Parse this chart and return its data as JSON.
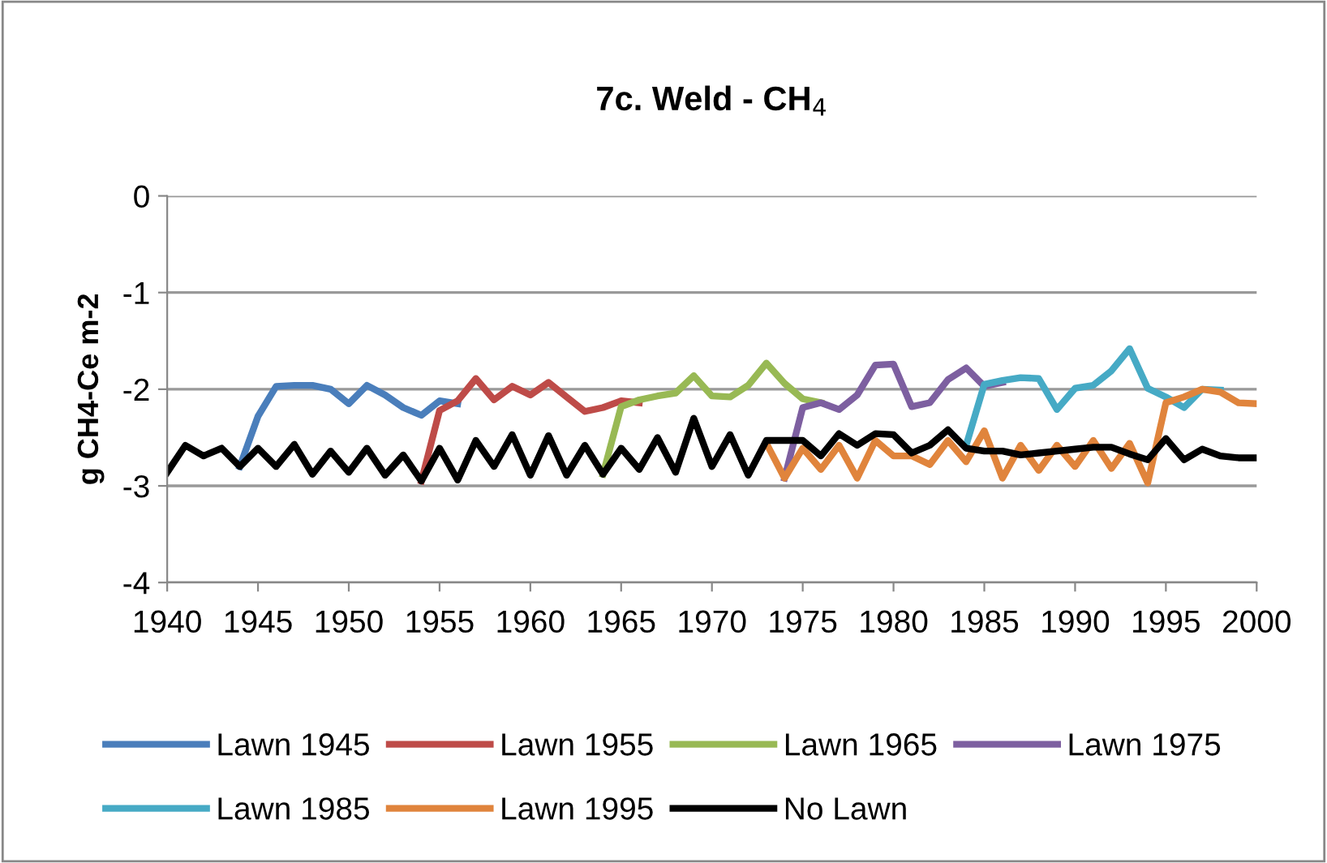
{
  "chart_data": {
    "type": "line",
    "title": "7c. Weld - CH$_{4}$",
    "ylabel": "g CH4-Ce m-2",
    "xlim": [
      1940,
      2000
    ],
    "xticks": [
      1940,
      1945,
      1950,
      1955,
      1960,
      1965,
      1970,
      1975,
      1980,
      1985,
      1990,
      1995,
      2000
    ],
    "ylim": [
      -4,
      0
    ],
    "yticks": [
      -4,
      -3,
      -2,
      -1,
      0
    ],
    "grid": "y",
    "legend": "bottom",
    "marker": "none",
    "line_style": "solid",
    "series": [
      {
        "name": "Lawn 1945",
        "color": "#4a7ebb",
        "x": [
          1944,
          1945,
          1946,
          1947,
          1948,
          1949,
          1950,
          1951,
          1952,
          1953,
          1954,
          1955,
          1956
        ],
        "values": [
          -2.8,
          -2.28,
          -1.97,
          -1.96,
          -1.96,
          -2.0,
          -2.15,
          -1.96,
          -2.06,
          -2.19,
          -2.27,
          -2.12,
          -2.15
        ]
      },
      {
        "name": "Lawn 1955",
        "color": "#be4b48",
        "x": [
          1954,
          1955,
          1956,
          1957,
          1958,
          1959,
          1960,
          1961,
          1962,
          1963,
          1964,
          1965,
          1966
        ],
        "values": [
          -2.95,
          -2.22,
          -2.12,
          -1.89,
          -2.11,
          -1.97,
          -2.06,
          -1.93,
          -2.08,
          -2.23,
          -2.19,
          -2.12,
          -2.14
        ]
      },
      {
        "name": "Lawn 1965",
        "color": "#98b954",
        "x": [
          1964,
          1965,
          1966,
          1967,
          1968,
          1969,
          1970,
          1971,
          1972,
          1973,
          1974,
          1975,
          1976
        ],
        "values": [
          -2.88,
          -2.18,
          -2.11,
          -2.07,
          -2.04,
          -1.86,
          -2.07,
          -2.08,
          -1.96,
          -1.73,
          -1.94,
          -2.1,
          -2.14
        ]
      },
      {
        "name": "Lawn 1975",
        "color": "#7d5fa0",
        "x": [
          1974,
          1975,
          1976,
          1977,
          1978,
          1979,
          1980,
          1981,
          1982,
          1983,
          1984,
          1985,
          1986
        ],
        "values": [
          -2.92,
          -2.19,
          -2.14,
          -2.21,
          -2.06,
          -1.75,
          -1.74,
          -2.18,
          -2.14,
          -1.9,
          -1.78,
          -1.97,
          -1.93
        ]
      },
      {
        "name": "Lawn 1985",
        "color": "#46aac5",
        "x": [
          1984,
          1985,
          1986,
          1987,
          1988,
          1989,
          1990,
          1991,
          1992,
          1993,
          1994,
          1995,
          1996,
          1997,
          1998
        ],
        "values": [
          -2.58,
          -1.95,
          -1.91,
          -1.88,
          -1.89,
          -2.21,
          -1.99,
          -1.96,
          -1.81,
          -1.58,
          -1.99,
          -2.08,
          -2.19,
          -2.0,
          -2.01
        ]
      },
      {
        "name": "Lawn 1995",
        "color": "#e0843c",
        "x": [
          1973,
          1974,
          1975,
          1976,
          1977,
          1978,
          1979,
          1980,
          1981,
          1982,
          1983,
          1984,
          1985,
          1986,
          1987,
          1988,
          1989,
          1990,
          1991,
          1992,
          1993,
          1994,
          1995,
          1996,
          1997,
          1998,
          1999,
          2000
        ],
        "values": [
          -2.56,
          -2.92,
          -2.61,
          -2.83,
          -2.58,
          -2.92,
          -2.53,
          -2.69,
          -2.69,
          -2.78,
          -2.53,
          -2.75,
          -2.43,
          -2.92,
          -2.58,
          -2.84,
          -2.58,
          -2.8,
          -2.53,
          -2.82,
          -2.56,
          -2.97,
          -2.14,
          -2.08,
          -2.0,
          -2.03,
          -2.14,
          -2.15
        ]
      },
      {
        "name": "No Lawn",
        "color": "#000000",
        "x": [
          1940,
          1941,
          1942,
          1943,
          1944,
          1945,
          1946,
          1947,
          1948,
          1949,
          1950,
          1951,
          1952,
          1953,
          1954,
          1955,
          1956,
          1957,
          1958,
          1959,
          1960,
          1961,
          1962,
          1963,
          1964,
          1965,
          1966,
          1967,
          1968,
          1969,
          1970,
          1971,
          1972,
          1973,
          1974,
          1975,
          1976,
          1977,
          1978,
          1979,
          1980,
          1981,
          1982,
          1983,
          1984,
          1985,
          1986,
          1987,
          1988,
          1989,
          1990,
          1991,
          1992,
          1993,
          1994,
          1995,
          1996,
          1997,
          1998,
          1999,
          2000
        ],
        "values": [
          -2.86,
          -2.58,
          -2.69,
          -2.61,
          -2.8,
          -2.61,
          -2.8,
          -2.57,
          -2.88,
          -2.64,
          -2.86,
          -2.61,
          -2.89,
          -2.68,
          -2.95,
          -2.61,
          -2.94,
          -2.53,
          -2.8,
          -2.47,
          -2.89,
          -2.48,
          -2.89,
          -2.58,
          -2.88,
          -2.61,
          -2.83,
          -2.5,
          -2.86,
          -2.3,
          -2.8,
          -2.47,
          -2.89,
          -2.53,
          -2.53,
          -2.53,
          -2.69,
          -2.46,
          -2.58,
          -2.46,
          -2.47,
          -2.66,
          -2.58,
          -2.42,
          -2.61,
          -2.64,
          -2.64,
          -2.68,
          -2.66,
          -2.64,
          -2.62,
          -2.6,
          -2.6,
          -2.67,
          -2.73,
          -2.51,
          -2.73,
          -2.62,
          -2.69,
          -2.71,
          -2.71
        ]
      }
    ]
  }
}
